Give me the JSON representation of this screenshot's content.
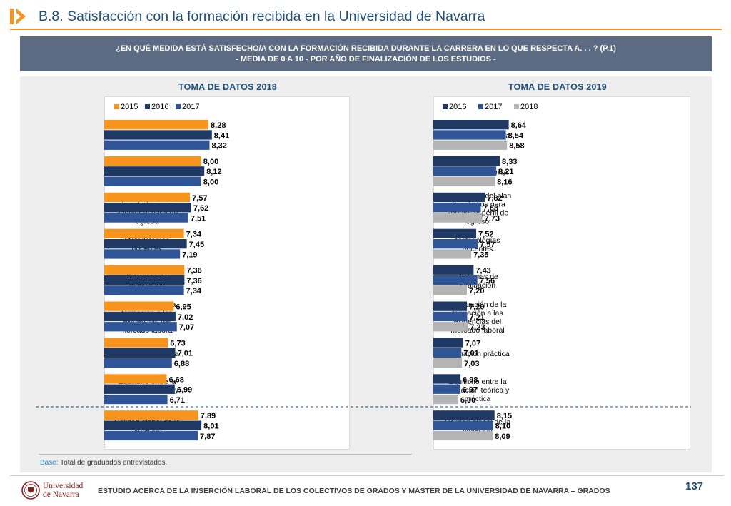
{
  "header": {
    "title": "B.8. Satisfacción con la formación recibida en la Universidad de Navarra",
    "accent_color": "#f7941d",
    "title_color": "#1f4e79"
  },
  "question": {
    "line1": "¿EN QUÉ MEDIDA ESTÁ SATISFECHO/A CON LA FORMACIÓN RECIBIDA DURANTE LA CARRERA EN LO QUE RESPECTA A. . . ? (P.1)",
    "line2": "- MEDIA DE 0 A 10 - POR AÑO DE FINALIZACIÓN DE LOS ESTUDIOS -"
  },
  "chart_data": [
    {
      "type": "bar",
      "orientation": "horizontal",
      "title": "TOMA DE DATOS 2018",
      "legend_position": "top",
      "xlim": [
        0,
        10
      ],
      "categories": [
        [
          "Formación humana"
        ],
        [
          "Formación teórica"
        ],
        [
          "Adecuación del plan",
          "de estudios para",
          "adquirir el perfil de",
          "egreso"
        ],
        [
          "Metodologías",
          "docentes"
        ],
        [
          "Sistemas de",
          "evaluación"
        ],
        [
          "Adecuación de la",
          "formación a las",
          "exigencias del",
          "mercado laboral"
        ],
        [
          "Formación práctica"
        ],
        [
          "Equilibrio entre la",
          "formación teórica y",
          "práctica"
        ],
        [
          "Calidad global de la",
          "titulación"
        ]
      ],
      "series": [
        {
          "name": "2015",
          "color": "#f7941d",
          "values": [
            8.28,
            8.0,
            7.57,
            7.34,
            7.36,
            6.95,
            6.73,
            6.68,
            7.89
          ],
          "labels": [
            "8,28",
            "8,00",
            "7,57",
            "7,34",
            "7,36",
            "6,95",
            "6,73",
            "6,68",
            "7,89"
          ]
        },
        {
          "name": "2016",
          "color": "#1f3864",
          "values": [
            8.41,
            8.12,
            7.62,
            7.45,
            7.36,
            7.02,
            7.01,
            6.99,
            8.01
          ],
          "labels": [
            "8,41",
            "8,12",
            "7,62",
            "7,45",
            "7,36",
            "7,02",
            "7,01",
            "6,99",
            "8,01"
          ]
        },
        {
          "name": "2017",
          "color": "#2f5597",
          "values": [
            8.32,
            8.0,
            7.51,
            7.19,
            7.34,
            7.07,
            6.88,
            6.71,
            7.87
          ],
          "labels": [
            "8,32",
            "8,00",
            "7,51",
            "7,19",
            "7,34",
            "7,07",
            "6,88",
            "6,71",
            "7,87"
          ]
        }
      ]
    },
    {
      "type": "bar",
      "orientation": "horizontal",
      "title": "TOMA DE DATOS 2019",
      "legend_position": "top",
      "xlim": [
        0,
        10
      ],
      "categories": [
        [
          "Formación humana"
        ],
        [
          "Formación teórica"
        ],
        [
          "Adecuación del plan",
          "de estudios para",
          "adquirir el perfil de",
          "egreso"
        ],
        [
          "Metodologías",
          "docentes"
        ],
        [
          "Sistemas de",
          "evaluación"
        ],
        [
          "Adecuación de la",
          "formación a las",
          "exigencias del",
          "mercado laboral"
        ],
        [
          "Formación práctica"
        ],
        [
          "Equilibrio entre la",
          "formación teórica y",
          "práctica"
        ],
        [
          "Calidad global de la",
          "titulación"
        ]
      ],
      "series": [
        {
          "name": "2016",
          "color": "#1f3864",
          "values": [
            8.64,
            8.33,
            7.82,
            7.52,
            7.43,
            7.2,
            7.07,
            6.98,
            8.15
          ],
          "labels": [
            "8,64",
            "8,33",
            "7,82",
            "7,52",
            "7,43",
            "7,20",
            "7,07",
            "6,98",
            "8,15"
          ]
        },
        {
          "name": "2017",
          "color": "#2f5597",
          "values": [
            8.54,
            8.21,
            7.68,
            7.57,
            7.56,
            7.21,
            7.01,
            6.97,
            8.1
          ],
          "labels": [
            "8,54",
            "8,21",
            "7,68",
            "7,57",
            "7,56",
            "7,21",
            "7,01",
            "6,97",
            "8,10"
          ]
        },
        {
          "name": "2018",
          "color": "#b4b4b4",
          "values": [
            8.58,
            8.16,
            7.73,
            7.35,
            7.2,
            7.23,
            7.03,
            6.9,
            8.09
          ],
          "labels": [
            "8,58",
            "8,16",
            "7,73",
            "7,35",
            "7,20",
            "7,23",
            "7,03",
            "6,90",
            "8,09"
          ]
        }
      ]
    }
  ],
  "base_note": {
    "label": "Base:",
    "text": " Total de graduados entrevistados."
  },
  "footer": {
    "logo_line1": "Universidad",
    "logo_line2": "de Navarra",
    "text": "ESTUDIO ACERCA DE LA INSERCIÓN LABORAL DE LOS COLECTIVOS DE GRADOS Y MÁSTER DE LA UNIVERSIDAD DE NAVARRA – GRADOS",
    "page_number": "137"
  }
}
